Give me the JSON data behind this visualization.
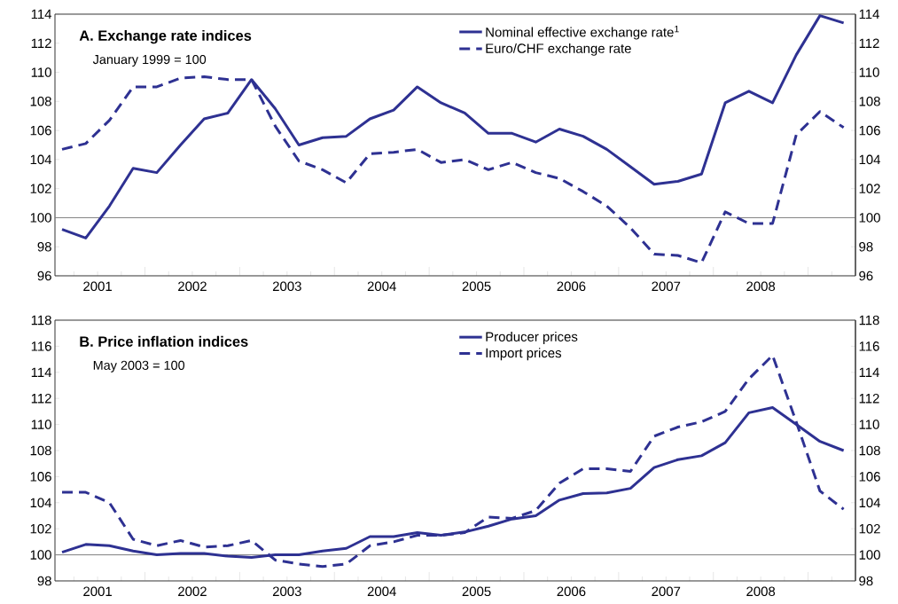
{
  "chart_data": [
    {
      "type": "line",
      "title": "A. Exchange rate indices",
      "subtitle": "January 1999 = 100",
      "x": [
        2001.125,
        2001.375,
        2001.625,
        2001.875,
        2002.125,
        2002.375,
        2002.625,
        2002.875,
        2003.125,
        2003.375,
        2003.625,
        2003.875,
        2004.125,
        2004.375,
        2004.625,
        2004.875,
        2005.125,
        2005.375,
        2005.625,
        2005.875,
        2006.125,
        2006.375,
        2006.625,
        2006.875,
        2007.125,
        2007.375,
        2007.625,
        2007.875,
        2008.125,
        2008.375,
        2008.625,
        2008.875,
        2009.125,
        2009.375
      ],
      "series": [
        {
          "name": "Nominal effective exchange rate$^{1}$",
          "color": "#2e3192",
          "line_style": "solid",
          "values": [
            99.2,
            98.6,
            100.8,
            103.4,
            103.1,
            105.0,
            106.8,
            107.2,
            109.5,
            107.5,
            105.0,
            105.5,
            105.6,
            106.8,
            107.4,
            109.0,
            107.9,
            107.2,
            105.8,
            105.8,
            105.2,
            106.1,
            105.6,
            104.7,
            103.5,
            102.3,
            102.5,
            103.0,
            107.9,
            108.7,
            107.9,
            111.2,
            113.9,
            113.4
          ]
        },
        {
          "name": "Euro/CHF exchange rate",
          "color": "#2e3192",
          "line_style": "dashed",
          "values": [
            104.7,
            105.1,
            106.7,
            109.0,
            109.0,
            109.6,
            109.7,
            109.5,
            109.5,
            106.3,
            103.9,
            103.3,
            102.4,
            104.4,
            104.5,
            104.7,
            103.8,
            104.0,
            103.3,
            103.8,
            103.1,
            102.7,
            101.8,
            100.8,
            99.3,
            97.5,
            97.4,
            96.9,
            100.4,
            99.6,
            99.6,
            105.7,
            107.3,
            106.2
          ]
        }
      ],
      "xlim": [
        2001.05,
        2009.5
      ],
      "xticks": [
        {
          "value": 2001.25,
          "label": null
        },
        {
          "value": 2001.5,
          "label": "2001"
        },
        {
          "value": 2001.75,
          "label": null
        },
        {
          "value": 2002,
          "label": null
        },
        {
          "value": 2002.25,
          "label": null
        },
        {
          "value": 2002.5,
          "label": "2002"
        },
        {
          "value": 2002.75,
          "label": null
        },
        {
          "value": 2003,
          "label": null
        },
        {
          "value": 2003.25,
          "label": null
        },
        {
          "value": 2003.5,
          "label": "2003"
        },
        {
          "value": 2003.75,
          "label": null
        },
        {
          "value": 2004,
          "label": null
        },
        {
          "value": 2004.25,
          "label": null
        },
        {
          "value": 2004.5,
          "label": "2004"
        },
        {
          "value": 2004.75,
          "label": null
        },
        {
          "value": 2005,
          "label": null
        },
        {
          "value": 2005.25,
          "label": null
        },
        {
          "value": 2005.5,
          "label": "2005"
        },
        {
          "value": 2005.75,
          "label": null
        },
        {
          "value": 2006,
          "label": null
        },
        {
          "value": 2006.25,
          "label": null
        },
        {
          "value": 2006.5,
          "label": "2006"
        },
        {
          "value": 2006.75,
          "label": null
        },
        {
          "value": 2007,
          "label": null
        },
        {
          "value": 2007.25,
          "label": null
        },
        {
          "value": 2007.5,
          "label": "2007"
        },
        {
          "value": 2007.75,
          "label": null
        },
        {
          "value": 2008,
          "label": null
        },
        {
          "value": 2008.25,
          "label": null
        },
        {
          "value": 2008.5,
          "label": "2008"
        },
        {
          "value": 2008.75,
          "label": null
        },
        {
          "value": 2009,
          "label": null
        },
        {
          "value": 2009.25,
          "label": null
        }
      ],
      "ylim": [
        96,
        114
      ],
      "yticks": [
        96,
        98,
        100,
        102,
        104,
        106,
        108,
        110,
        112,
        114
      ],
      "y2lim": [
        96,
        114
      ],
      "y2ticks": [
        96,
        98,
        100,
        102,
        104,
        106,
        108,
        110,
        112,
        114
      ],
      "ref_lines": [
        {
          "axis": "y",
          "value": 100,
          "color": "#808080"
        }
      ],
      "legend": "top right",
      "grid": false,
      "marker": "none"
    },
    {
      "type": "line",
      "title": "B. Price inflation indices",
      "subtitle": "May 2003 = 100",
      "x": [
        2001.125,
        2001.375,
        2001.625,
        2001.875,
        2002.125,
        2002.375,
        2002.625,
        2002.875,
        2003.125,
        2003.375,
        2003.625,
        2003.875,
        2004.125,
        2004.375,
        2004.625,
        2004.875,
        2005.125,
        2005.375,
        2005.625,
        2005.875,
        2006.125,
        2006.375,
        2006.625,
        2006.875,
        2007.125,
        2007.375,
        2007.625,
        2007.875,
        2008.125,
        2008.375,
        2008.625,
        2008.875,
        2009.125,
        2009.375
      ],
      "series": [
        {
          "name": "Producer prices",
          "color": "#2e3192",
          "line_style": "solid",
          "values": [
            100.2,
            100.8,
            100.7,
            100.3,
            100.0,
            100.1,
            100.1,
            99.9,
            99.8,
            100.0,
            100.0,
            100.3,
            100.5,
            101.4,
            101.4,
            101.7,
            101.5,
            101.75,
            102.2,
            102.75,
            103.0,
            104.2,
            104.7,
            104.75,
            105.1,
            106.7,
            107.3,
            107.6,
            108.6,
            110.9,
            111.3,
            110.0,
            108.7,
            108.0
          ]
        },
        {
          "name": "Import prices",
          "color": "#2e3192",
          "line_style": "dashed",
          "values": [
            104.8,
            104.8,
            104.0,
            101.2,
            100.7,
            101.1,
            100.6,
            100.7,
            101.1,
            99.6,
            99.3,
            99.1,
            99.3,
            100.7,
            101.0,
            101.5,
            101.5,
            101.7,
            102.9,
            102.8,
            103.4,
            105.5,
            106.6,
            106.6,
            106.4,
            109.1,
            109.8,
            110.2,
            111.0,
            113.5,
            115.3,
            110.2,
            104.9,
            103.5
          ]
        }
      ],
      "xlim": [
        2001.05,
        2009.5
      ],
      "xticks": [
        {
          "value": 2001.25,
          "label": null
        },
        {
          "value": 2001.5,
          "label": "2001"
        },
        {
          "value": 2001.75,
          "label": null
        },
        {
          "value": 2002,
          "label": null
        },
        {
          "value": 2002.25,
          "label": null
        },
        {
          "value": 2002.5,
          "label": "2002"
        },
        {
          "value": 2002.75,
          "label": null
        },
        {
          "value": 2003,
          "label": null
        },
        {
          "value": 2003.25,
          "label": null
        },
        {
          "value": 2003.5,
          "label": "2003"
        },
        {
          "value": 2003.75,
          "label": null
        },
        {
          "value": 2004,
          "label": null
        },
        {
          "value": 2004.25,
          "label": null
        },
        {
          "value": 2004.5,
          "label": "2004"
        },
        {
          "value": 2004.75,
          "label": null
        },
        {
          "value": 2005,
          "label": null
        },
        {
          "value": 2005.25,
          "label": null
        },
        {
          "value": 2005.5,
          "label": "2005"
        },
        {
          "value": 2005.75,
          "label": null
        },
        {
          "value": 2006,
          "label": null
        },
        {
          "value": 2006.25,
          "label": null
        },
        {
          "value": 2006.5,
          "label": "2006"
        },
        {
          "value": 2006.75,
          "label": null
        },
        {
          "value": 2007,
          "label": null
        },
        {
          "value": 2007.25,
          "label": null
        },
        {
          "value": 2007.5,
          "label": "2007"
        },
        {
          "value": 2007.75,
          "label": null
        },
        {
          "value": 2008,
          "label": null
        },
        {
          "value": 2008.25,
          "label": null
        },
        {
          "value": 2008.5,
          "label": "2008"
        },
        {
          "value": 2008.75,
          "label": null
        },
        {
          "value": 2009,
          "label": null
        },
        {
          "value": 2009.25,
          "label": null
        }
      ],
      "ylim": [
        98,
        118
      ],
      "yticks": [
        98,
        100,
        102,
        104,
        106,
        108,
        110,
        112,
        114,
        116,
        118
      ],
      "y2lim": [
        98,
        118
      ],
      "y2ticks": [
        98,
        100,
        102,
        104,
        106,
        108,
        110,
        112,
        114,
        116,
        118
      ],
      "ref_lines": [
        {
          "axis": "y",
          "value": 100,
          "color": "#808080"
        }
      ],
      "legend": "top right",
      "grid": false,
      "marker": "none"
    }
  ]
}
